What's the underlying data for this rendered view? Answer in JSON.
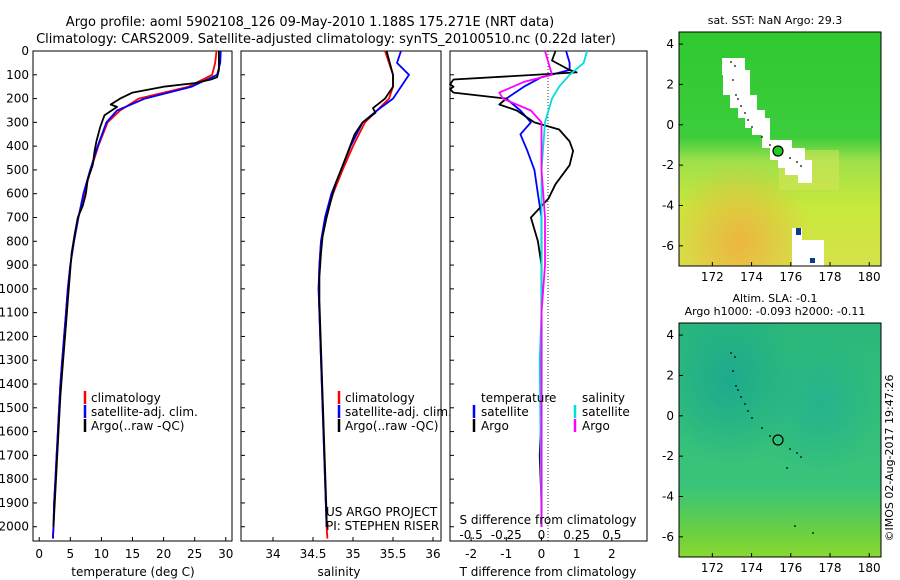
{
  "header": {
    "line1": "Argo profile: aoml 5902108_126 09-May-2010 1.188S 175.271E (NRT data)",
    "line2": "Climatology: CARS2009. Satellite-adjusted climatology: synTS_20100510.nc (0.22d later)"
  },
  "colors": {
    "climatology": "#ff0000",
    "satellite": "#0000ff",
    "argo": "#000000",
    "salinity_satellite": "#00dddd",
    "salinity_argo": "#ff00ff"
  },
  "chart_data": [
    {
      "type": "line",
      "id": "temperature",
      "xlabel": "temperature (deg C)",
      "xlim": [
        -1,
        31
      ],
      "xticks": [
        0,
        5,
        10,
        15,
        20,
        25,
        30
      ],
      "ylim": [
        2060,
        0
      ],
      "yticks": [
        0,
        100,
        200,
        300,
        400,
        500,
        600,
        700,
        800,
        900,
        1000,
        1100,
        1200,
        1300,
        1400,
        1500,
        1600,
        1700,
        1800,
        1900,
        2000
      ],
      "legend": [
        "climatology",
        "satellite-adj. clim.",
        "Argo(..raw -QC)"
      ],
      "series": [
        {
          "name": "climatology",
          "color": "#ff0000",
          "points": [
            [
              28.5,
              0
            ],
            [
              28.3,
              50
            ],
            [
              27.8,
              100
            ],
            [
              24,
              150
            ],
            [
              16,
              200
            ],
            [
              13,
              250
            ],
            [
              11,
              300
            ],
            [
              9.5,
              400
            ],
            [
              8.3,
              500
            ],
            [
              7.2,
              600
            ],
            [
              6.3,
              700
            ],
            [
              5.6,
              800
            ],
            [
              5,
              900
            ],
            [
              4.6,
              1000
            ],
            [
              4.3,
              1100
            ],
            [
              4,
              1200
            ],
            [
              3.7,
              1300
            ],
            [
              3.4,
              1400
            ],
            [
              3.2,
              1500
            ],
            [
              3,
              1600
            ],
            [
              2.8,
              1700
            ],
            [
              2.6,
              1800
            ],
            [
              2.4,
              1900
            ],
            [
              2.3,
              2000
            ],
            [
              2.2,
              2050
            ]
          ]
        },
        {
          "name": "satellite-adj. clim.",
          "color": "#0000ff",
          "points": [
            [
              29.2,
              0
            ],
            [
              29.1,
              50
            ],
            [
              28.6,
              100
            ],
            [
              24.5,
              150
            ],
            [
              17,
              200
            ],
            [
              12.5,
              250
            ],
            [
              10.8,
              300
            ],
            [
              9.4,
              400
            ],
            [
              8.2,
              500
            ],
            [
              7.1,
              600
            ],
            [
              6.3,
              700
            ],
            [
              5.6,
              800
            ],
            [
              5,
              900
            ],
            [
              4.6,
              1000
            ],
            [
              4.3,
              1100
            ],
            [
              4,
              1200
            ],
            [
              3.7,
              1300
            ],
            [
              3.4,
              1400
            ],
            [
              3.2,
              1500
            ],
            [
              3,
              1600
            ],
            [
              2.8,
              1700
            ],
            [
              2.6,
              1800
            ],
            [
              2.4,
              1900
            ],
            [
              2.3,
              2000
            ],
            [
              2.2,
              2050
            ]
          ]
        },
        {
          "name": "Argo(..raw -QC)",
          "color": "#000000",
          "points": [
            [
              28.9,
              0
            ],
            [
              28.9,
              80
            ],
            [
              28.6,
              110
            ],
            [
              27.6,
              120
            ],
            [
              25,
              135
            ],
            [
              20,
              150
            ],
            [
              15,
              175
            ],
            [
              13,
              200
            ],
            [
              11.5,
              225
            ],
            [
              12.5,
              235
            ],
            [
              10.5,
              270
            ],
            [
              9.8,
              320
            ],
            [
              9.2,
              380
            ],
            [
              8.9,
              420
            ],
            [
              8.6,
              480
            ],
            [
              7.8,
              540
            ],
            [
              7.5,
              600
            ],
            [
              7,
              650
            ],
            [
              6.2,
              700
            ],
            [
              5.7,
              770
            ],
            [
              5.2,
              850
            ],
            [
              4.9,
              950
            ],
            [
              4.6,
              1050
            ],
            [
              4.3,
              1150
            ],
            [
              4,
              1250
            ],
            [
              3.7,
              1350
            ],
            [
              3.4,
              1450
            ],
            [
              3.2,
              1550
            ],
            [
              3,
              1650
            ],
            [
              2.8,
              1750
            ],
            [
              2.6,
              1850
            ],
            [
              2.4,
              1950
            ],
            [
              2.3,
              2000
            ]
          ]
        }
      ]
    },
    {
      "type": "line",
      "id": "salinity",
      "xlabel": "salinity",
      "xlim": [
        33.6,
        36.1
      ],
      "xticks": [
        34,
        34.5,
        35,
        35.5,
        36
      ],
      "ylim": [
        2060,
        0
      ],
      "legend": [
        "climatology",
        "satellite-adj. clim.",
        "Argo(..raw -QC)"
      ],
      "annotation": [
        "US ARGO PROJECT",
        "PI: STEPHEN RISER"
      ],
      "series": [
        {
          "name": "climatology",
          "color": "#ff0000",
          "points": [
            [
              35.4,
              0
            ],
            [
              35.45,
              50
            ],
            [
              35.5,
              100
            ],
            [
              35.5,
              150
            ],
            [
              35.45,
              200
            ],
            [
              35.3,
              250
            ],
            [
              35.15,
              300
            ],
            [
              35,
              400
            ],
            [
              34.87,
              500
            ],
            [
              34.75,
              600
            ],
            [
              34.66,
              700
            ],
            [
              34.6,
              800
            ],
            [
              34.58,
              900
            ],
            [
              34.57,
              1000
            ],
            [
              34.58,
              1100
            ],
            [
              34.59,
              1200
            ],
            [
              34.6,
              1300
            ],
            [
              34.61,
              1400
            ],
            [
              34.62,
              1500
            ],
            [
              34.63,
              1600
            ],
            [
              34.64,
              1700
            ],
            [
              34.65,
              1800
            ],
            [
              34.66,
              1900
            ],
            [
              34.67,
              2000
            ],
            [
              34.68,
              2050
            ]
          ]
        },
        {
          "name": "satellite-adj. clim.",
          "color": "#0000ff",
          "points": [
            [
              35.6,
              0
            ],
            [
              35.55,
              50
            ],
            [
              35.7,
              100
            ],
            [
              35.6,
              150
            ],
            [
              35.5,
              200
            ],
            [
              35.3,
              250
            ],
            [
              35.12,
              300
            ],
            [
              34.97,
              400
            ],
            [
              34.85,
              500
            ],
            [
              34.73,
              600
            ],
            [
              34.65,
              700
            ],
            [
              34.6,
              800
            ],
            [
              34.58,
              900
            ],
            [
              34.57,
              1000
            ],
            [
              34.58,
              1100
            ],
            [
              34.59,
              1200
            ],
            [
              34.6,
              1300
            ],
            [
              34.61,
              1400
            ],
            [
              34.62,
              1500
            ],
            [
              34.63,
              1600
            ],
            [
              34.64,
              1700
            ],
            [
              34.65,
              1800
            ],
            [
              34.66,
              1900
            ],
            [
              34.67,
              2000
            ]
          ]
        },
        {
          "name": "Argo(..raw -QC)",
          "color": "#000000",
          "points": [
            [
              35.42,
              0
            ],
            [
              35.46,
              50
            ],
            [
              35.5,
              100
            ],
            [
              35.5,
              150
            ],
            [
              35.4,
              200
            ],
            [
              35.25,
              240
            ],
            [
              35.28,
              260
            ],
            [
              35.12,
              300
            ],
            [
              35.02,
              350
            ],
            [
              34.93,
              430
            ],
            [
              34.85,
              500
            ],
            [
              34.78,
              560
            ],
            [
              34.73,
              620
            ],
            [
              34.67,
              700
            ],
            [
              34.62,
              780
            ],
            [
              34.6,
              850
            ],
            [
              34.58,
              950
            ],
            [
              34.58,
              1050
            ],
            [
              34.59,
              1150
            ],
            [
              34.6,
              1250
            ],
            [
              34.61,
              1350
            ],
            [
              34.62,
              1450
            ],
            [
              34.63,
              1550
            ],
            [
              34.64,
              1650
            ],
            [
              34.65,
              1750
            ],
            [
              34.66,
              1850
            ],
            [
              34.67,
              1950
            ],
            [
              34.67,
              2000
            ]
          ]
        }
      ]
    },
    {
      "type": "line",
      "id": "differences",
      "xlabel": "T difference from climatology",
      "xlabel_top": "S difference from climatology",
      "xlim": [
        -2.6,
        3
      ],
      "xticks": [
        -2,
        -1,
        0,
        1,
        2
      ],
      "top_ticks": [
        {
          "label": "-0.5",
          "x": -2
        },
        {
          "label": "-0.25",
          "x": -1
        },
        {
          "label": "0",
          "x": 0
        },
        {
          "label": "0.25",
          "x": 1
        },
        {
          "label": "0.5",
          "x": 2
        }
      ],
      "ylim": [
        2060,
        0
      ],
      "legend_temperature": {
        "title": "temperature",
        "items": [
          "satellite",
          "Argo"
        ]
      },
      "legend_salinity": {
        "title": "salinity",
        "items": [
          "satellite",
          "Argo"
        ]
      },
      "series": [
        {
          "name": "T satellite",
          "color": "#0000ff",
          "points": [
            [
              0.7,
              0
            ],
            [
              0.8,
              50
            ],
            [
              0.8,
              80
            ],
            [
              0,
              110
            ],
            [
              -0.5,
              150
            ],
            [
              -1,
              200
            ],
            [
              -0.6,
              250
            ],
            [
              -0.3,
              300
            ],
            [
              -0.6,
              350
            ],
            [
              -0.4,
              420
            ],
            [
              -0.2,
              500
            ],
            [
              -0.1,
              600
            ],
            [
              0,
              700
            ],
            [
              0,
              2000
            ]
          ]
        },
        {
          "name": "T Argo",
          "color": "#000000",
          "points": [
            [
              0.4,
              0
            ],
            [
              0.3,
              40
            ],
            [
              0.8,
              80
            ],
            [
              1,
              90
            ],
            [
              -2.5,
              120
            ],
            [
              -2.55,
              130
            ],
            [
              -2.6,
              140
            ],
            [
              -2.5,
              150
            ],
            [
              -2.6,
              160
            ],
            [
              -2.5,
              175
            ],
            [
              -1,
              200
            ],
            [
              -1.2,
              225
            ],
            [
              -0.7,
              250
            ],
            [
              -0.2,
              300
            ],
            [
              0.5,
              330
            ],
            [
              0.8,
              380
            ],
            [
              0.9,
              420
            ],
            [
              0.8,
              480
            ],
            [
              0.4,
              560
            ],
            [
              0.2,
              620
            ],
            [
              -0.3,
              700
            ],
            [
              -0.1,
              800
            ],
            [
              0,
              900
            ],
            [
              0,
              1100
            ],
            [
              0,
              1500
            ],
            [
              -0.05,
              1700
            ],
            [
              0,
              1900
            ],
            [
              0,
              2000
            ]
          ]
        },
        {
          "name": "S satellite",
          "color": "#00dddd",
          "points": [
            [
              1.3,
              0
            ],
            [
              1.2,
              50
            ],
            [
              0.8,
              100
            ],
            [
              0.5,
              150
            ],
            [
              0.3,
              200
            ],
            [
              0.1,
              300
            ],
            [
              0,
              500
            ],
            [
              0,
              800
            ],
            [
              0,
              1100
            ],
            [
              -0.05,
              1300
            ],
            [
              0,
              2000
            ]
          ]
        },
        {
          "name": "S Argo",
          "color": "#ff00ff",
          "points": [
            [
              0.1,
              0
            ],
            [
              0.2,
              50
            ],
            [
              0.3,
              100
            ],
            [
              -0.5,
              130
            ],
            [
              -1.2,
              175
            ],
            [
              -1.1,
              200
            ],
            [
              -0.3,
              250
            ],
            [
              0,
              300
            ],
            [
              0,
              500
            ],
            [
              0.1,
              700
            ],
            [
              0.1,
              900
            ],
            [
              0,
              1100
            ],
            [
              0,
              2000
            ]
          ]
        }
      ]
    }
  ],
  "sst_map": {
    "title": "sat. SST: NaN  Argo: 29.3",
    "xticks": [
      "172",
      "174",
      "176",
      "178",
      "180"
    ],
    "yticks": [
      "4",
      "2",
      "0",
      "-2",
      "-4",
      "-6"
    ]
  },
  "sla_map": {
    "title1": "Altim. SLA: -0.1",
    "title2": "Argo h1000: -0.093 h2000: -0.11",
    "xticks": [
      "172",
      "174",
      "176",
      "178",
      "180"
    ],
    "yticks": [
      "4",
      "2",
      "0",
      "-2",
      "-4",
      "-6"
    ]
  },
  "credit": "©IMOS 02-Aug-2017 19:47:26"
}
